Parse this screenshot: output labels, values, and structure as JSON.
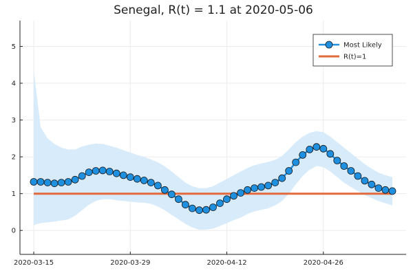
{
  "chart_data": {
    "type": "line",
    "title": "Senegal, R(t) = 1.1 at 2020-05-06",
    "xlabel": "",
    "ylabel": "",
    "x_range": [
      "2020-03-13",
      "2020-05-08"
    ],
    "ylim": [
      -0.65,
      5.7
    ],
    "x_ticks": [
      "2020-03-15",
      "2020-03-29",
      "2020-04-12",
      "2020-04-26"
    ],
    "y_ticks": [
      0,
      1,
      2,
      3,
      4,
      5
    ],
    "grid": true,
    "legend_position": "top-right",
    "x": [
      "2020-03-15",
      "2020-03-16",
      "2020-03-17",
      "2020-03-18",
      "2020-03-19",
      "2020-03-20",
      "2020-03-21",
      "2020-03-22",
      "2020-03-23",
      "2020-03-24",
      "2020-03-25",
      "2020-03-26",
      "2020-03-27",
      "2020-03-28",
      "2020-03-29",
      "2020-03-30",
      "2020-03-31",
      "2020-04-01",
      "2020-04-02",
      "2020-04-03",
      "2020-04-04",
      "2020-04-05",
      "2020-04-06",
      "2020-04-07",
      "2020-04-08",
      "2020-04-09",
      "2020-04-10",
      "2020-04-11",
      "2020-04-12",
      "2020-04-13",
      "2020-04-14",
      "2020-04-15",
      "2020-04-16",
      "2020-04-17",
      "2020-04-18",
      "2020-04-19",
      "2020-04-20",
      "2020-04-21",
      "2020-04-22",
      "2020-04-23",
      "2020-04-24",
      "2020-04-25",
      "2020-04-26",
      "2020-04-27",
      "2020-04-28",
      "2020-04-29",
      "2020-04-30",
      "2020-05-01",
      "2020-05-02",
      "2020-05-03",
      "2020-05-04",
      "2020-05-05",
      "2020-05-06"
    ],
    "series": [
      {
        "name": "Most Likely",
        "color": "#1f8fdf",
        "values": [
          1.32,
          1.32,
          1.3,
          1.28,
          1.3,
          1.32,
          1.38,
          1.48,
          1.58,
          1.62,
          1.63,
          1.6,
          1.55,
          1.5,
          1.45,
          1.4,
          1.36,
          1.3,
          1.22,
          1.1,
          0.98,
          0.85,
          0.7,
          0.6,
          0.55,
          0.56,
          0.63,
          0.74,
          0.85,
          0.94,
          1.02,
          1.1,
          1.15,
          1.18,
          1.22,
          1.3,
          1.42,
          1.62,
          1.85,
          2.05,
          2.2,
          2.27,
          2.22,
          2.08,
          1.9,
          1.75,
          1.62,
          1.48,
          1.35,
          1.25,
          1.15,
          1.1,
          1.07
        ]
      },
      {
        "name": "R(t)=1",
        "color": "#e26a3c",
        "values": [
          1,
          1,
          1,
          1,
          1,
          1,
          1,
          1,
          1,
          1,
          1,
          1,
          1,
          1,
          1,
          1,
          1,
          1,
          1,
          1,
          1,
          1,
          1,
          1,
          1,
          1,
          1,
          1,
          1,
          1,
          1,
          1,
          1,
          1,
          1,
          1,
          1,
          1,
          1,
          1,
          1,
          1,
          1,
          1,
          1,
          1,
          1,
          1,
          1,
          1,
          1,
          1,
          1
        ]
      }
    ],
    "band": {
      "color": "#d8ebfb",
      "upper": [
        4.35,
        2.8,
        2.5,
        2.35,
        2.25,
        2.2,
        2.2,
        2.28,
        2.33,
        2.36,
        2.35,
        2.3,
        2.25,
        2.18,
        2.12,
        2.05,
        2.0,
        1.93,
        1.85,
        1.74,
        1.6,
        1.45,
        1.3,
        1.2,
        1.15,
        1.15,
        1.2,
        1.3,
        1.4,
        1.5,
        1.6,
        1.7,
        1.77,
        1.82,
        1.86,
        1.92,
        2.02,
        2.2,
        2.4,
        2.55,
        2.65,
        2.7,
        2.67,
        2.55,
        2.4,
        2.25,
        2.1,
        1.95,
        1.8,
        1.68,
        1.57,
        1.5,
        1.45
      ],
      "lower": [
        0.15,
        0.2,
        0.22,
        0.24,
        0.27,
        0.3,
        0.4,
        0.55,
        0.7,
        0.8,
        0.85,
        0.85,
        0.82,
        0.8,
        0.78,
        0.76,
        0.75,
        0.72,
        0.65,
        0.55,
        0.42,
        0.3,
        0.18,
        0.08,
        0.02,
        0.02,
        0.05,
        0.12,
        0.2,
        0.28,
        0.35,
        0.45,
        0.52,
        0.56,
        0.6,
        0.68,
        0.8,
        1.0,
        1.25,
        1.48,
        1.65,
        1.75,
        1.72,
        1.6,
        1.45,
        1.3,
        1.18,
        1.07,
        0.96,
        0.88,
        0.8,
        0.74,
        0.68
      ]
    }
  }
}
